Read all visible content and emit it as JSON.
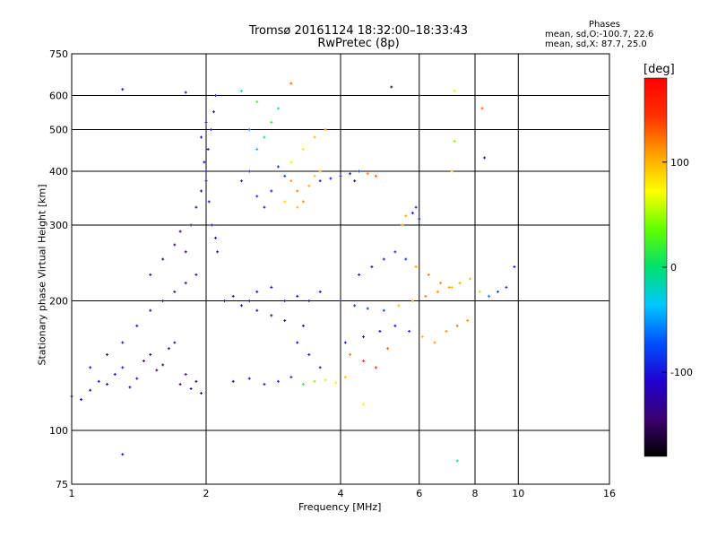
{
  "header": {
    "title_line1": "Tromsø 20161124 18:32:00–18:33:43",
    "title_line2": "RwPretec (8p)"
  },
  "stats": {
    "heading": "Phases",
    "line_o": "mean, sd,O:-100.7, 22.6",
    "line_x": "mean, sd,X:  87.7, 25.0"
  },
  "colorbar": {
    "unit_label": "[deg]",
    "ticks": [
      "100",
      "0",
      "-100"
    ],
    "tick_values": [
      100,
      0,
      -100
    ],
    "range": [
      -180,
      180
    ],
    "colors": [
      "#000000",
      "#3b0070",
      "#2000d0",
      "#0050ff",
      "#00c8ff",
      "#00e070",
      "#60ff00",
      "#ffff00",
      "#ffa000",
      "#ff3000",
      "#ff0000"
    ]
  },
  "chart_data": {
    "type": "scatter",
    "xlabel": "Frequency [MHz]",
    "ylabel": "Stationary phase Virtual Height [km]",
    "x_scale": "log",
    "y_scale": "log",
    "xlim": [
      1,
      16
    ],
    "ylim": [
      75,
      750
    ],
    "x_ticks": [
      1,
      2,
      4,
      6,
      8,
      10,
      16
    ],
    "x_tick_labels": [
      "1",
      "2",
      "4",
      "6",
      "8",
      "10",
      "16"
    ],
    "y_ticks": [
      75,
      100,
      200,
      300,
      400,
      500,
      600,
      750
    ],
    "y_tick_labels": [
      "75",
      "100",
      "200",
      "300",
      "400",
      "500",
      "600",
      "750"
    ],
    "grid": true,
    "series": [
      {
        "points": [
          [
            1.0,
            120,
            -115
          ],
          [
            1.05,
            118,
            -112
          ],
          [
            1.1,
            124,
            -118
          ],
          [
            1.15,
            130,
            -120
          ],
          [
            1.2,
            128,
            -110
          ],
          [
            1.25,
            135,
            -122
          ],
          [
            1.3,
            140,
            -118
          ],
          [
            1.35,
            126,
            -125
          ],
          [
            1.4,
            132,
            -130
          ],
          [
            1.45,
            145,
            -128
          ],
          [
            1.5,
            150,
            -135
          ],
          [
            1.55,
            138,
            -132
          ],
          [
            1.6,
            142,
            -140
          ],
          [
            1.65,
            155,
            -138
          ],
          [
            1.7,
            160,
            -142
          ],
          [
            1.75,
            128,
            -145
          ],
          [
            1.8,
            135,
            -140
          ],
          [
            1.85,
            125,
            -138
          ],
          [
            1.9,
            130,
            -148
          ],
          [
            1.95,
            122,
            -150
          ],
          [
            1.1,
            140,
            -105
          ],
          [
            1.2,
            150,
            -108
          ],
          [
            1.3,
            160,
            -112
          ],
          [
            1.4,
            175,
            -118
          ],
          [
            1.5,
            190,
            -125
          ],
          [
            1.6,
            200,
            -130
          ],
          [
            1.7,
            210,
            -135
          ],
          [
            1.8,
            220,
            -138
          ],
          [
            1.9,
            230,
            -140
          ],
          [
            1.5,
            230,
            -145
          ],
          [
            1.6,
            250,
            -150
          ],
          [
            1.7,
            270,
            -148
          ],
          [
            1.75,
            290,
            -152
          ],
          [
            1.8,
            260,
            -150
          ],
          [
            1.85,
            300,
            -140
          ],
          [
            1.9,
            330,
            -130
          ],
          [
            1.95,
            360,
            -120
          ],
          [
            2.0,
            400,
            -110
          ],
          [
            2.02,
            450,
            -105
          ],
          [
            2.05,
            500,
            -100
          ],
          [
            2.08,
            550,
            -95
          ],
          [
            2.1,
            600,
            -90
          ],
          [
            1.98,
            420,
            -115
          ],
          [
            2.0,
            380,
            -118
          ],
          [
            2.03,
            340,
            -122
          ],
          [
            2.06,
            300,
            -125
          ],
          [
            2.1,
            280,
            -120
          ],
          [
            2.12,
            260,
            -128
          ],
          [
            1.95,
            480,
            -108
          ],
          [
            2.0,
            520,
            -102
          ],
          [
            2.2,
            200,
            -125
          ],
          [
            2.3,
            205,
            -130
          ],
          [
            2.4,
            195,
            -128
          ],
          [
            2.5,
            200,
            -120
          ],
          [
            2.6,
            210,
            -115
          ],
          [
            2.8,
            215,
            -110
          ],
          [
            3.0,
            200,
            -105
          ],
          [
            3.2,
            205,
            -108
          ],
          [
            3.4,
            200,
            -112
          ],
          [
            3.6,
            210,
            -118
          ],
          [
            2.6,
            190,
            -130
          ],
          [
            2.8,
            185,
            -135
          ],
          [
            3.0,
            180,
            -128
          ],
          [
            3.3,
            175,
            -120
          ],
          [
            2.3,
            130,
            -110
          ],
          [
            2.5,
            132,
            -105
          ],
          [
            2.7,
            128,
            -100
          ],
          [
            2.9,
            130,
            -95
          ],
          [
            3.1,
            133,
            -90
          ],
          [
            3.3,
            128,
            20
          ],
          [
            3.5,
            130,
            40
          ],
          [
            3.7,
            131,
            60
          ],
          [
            3.9,
            129,
            80
          ],
          [
            4.1,
            133,
            95
          ],
          [
            3.6,
            140,
            -100
          ],
          [
            3.4,
            150,
            -105
          ],
          [
            3.2,
            160,
            -108
          ],
          [
            2.4,
            380,
            -95
          ],
          [
            2.5,
            400,
            -90
          ],
          [
            2.6,
            350,
            -92
          ],
          [
            2.7,
            330,
            -100
          ],
          [
            2.8,
            360,
            -98
          ],
          [
            2.9,
            410,
            -88
          ],
          [
            3.0,
            390,
            -85
          ],
          [
            2.6,
            450,
            -40
          ],
          [
            2.7,
            480,
            -20
          ],
          [
            2.8,
            520,
            10
          ],
          [
            2.9,
            560,
            -10
          ],
          [
            2.5,
            500,
            -60
          ],
          [
            2.6,
            580,
            30
          ],
          [
            3.1,
            380,
            110
          ],
          [
            3.2,
            360,
            120
          ],
          [
            3.3,
            340,
            115
          ],
          [
            3.4,
            370,
            105
          ],
          [
            3.5,
            390,
            95
          ],
          [
            3.6,
            400,
            100
          ],
          [
            3.1,
            420,
            60
          ],
          [
            3.3,
            450,
            80
          ],
          [
            3.5,
            480,
            100
          ],
          [
            3.7,
            500,
            115
          ],
          [
            3.2,
            330,
            100
          ],
          [
            3.0,
            340,
            90
          ],
          [
            3.6,
            380,
            -100
          ],
          [
            3.8,
            385,
            -105
          ],
          [
            4.0,
            390,
            -95
          ],
          [
            4.2,
            395,
            -90
          ],
          [
            4.4,
            400,
            -85
          ],
          [
            4.6,
            395,
            120
          ],
          [
            4.8,
            390,
            130
          ],
          [
            4.3,
            380,
            -110
          ],
          [
            4.0,
            200,
            -95
          ],
          [
            4.3,
            195,
            -90
          ],
          [
            4.6,
            192,
            -85
          ],
          [
            5.0,
            190,
            -80
          ],
          [
            5.4,
            195,
            100
          ],
          [
            5.8,
            200,
            110
          ],
          [
            6.2,
            205,
            120
          ],
          [
            6.6,
            210,
            115
          ],
          [
            7.0,
            215,
            110
          ],
          [
            7.4,
            220,
            105
          ],
          [
            7.8,
            225,
            100
          ],
          [
            8.2,
            210,
            90
          ],
          [
            8.6,
            205,
            -60
          ],
          [
            9.0,
            210,
            -80
          ],
          [
            9.4,
            215,
            -90
          ],
          [
            4.1,
            160,
            -100
          ],
          [
            4.5,
            165,
            -105
          ],
          [
            4.9,
            170,
            -110
          ],
          [
            5.3,
            175,
            -108
          ],
          [
            5.7,
            170,
            -95
          ],
          [
            6.1,
            165,
            100
          ],
          [
            6.5,
            160,
            110
          ],
          [
            6.9,
            170,
            115
          ],
          [
            7.3,
            175,
            120
          ],
          [
            7.7,
            180,
            112
          ],
          [
            4.2,
            150,
            120
          ],
          [
            4.5,
            145,
            140
          ],
          [
            4.8,
            140,
            150
          ],
          [
            5.1,
            155,
            130
          ],
          [
            4.4,
            230,
            -110
          ],
          [
            4.7,
            240,
            -105
          ],
          [
            5.0,
            250,
            -100
          ],
          [
            5.3,
            260,
            -95
          ],
          [
            5.6,
            250,
            -90
          ],
          [
            5.9,
            240,
            110
          ],
          [
            6.3,
            230,
            120
          ],
          [
            6.7,
            220,
            115
          ],
          [
            7.1,
            215,
            100
          ],
          [
            5.8,
            320,
            -100
          ],
          [
            5.9,
            330,
            -95
          ],
          [
            6.0,
            310,
            -90
          ],
          [
            5.5,
            300,
            110
          ],
          [
            5.6,
            315,
            105
          ],
          [
            1.3,
            620,
            -120
          ],
          [
            1.3,
            88,
            -110
          ],
          [
            1.8,
            610,
            -130
          ],
          [
            2.4,
            615,
            -20
          ],
          [
            3.1,
            640,
            130
          ],
          [
            5.2,
            628,
            -150
          ],
          [
            7.2,
            615,
            60
          ],
          [
            7.3,
            85,
            -10
          ],
          [
            8.3,
            560,
            130
          ],
          [
            8.4,
            430,
            -140
          ],
          [
            9.8,
            240,
            -100
          ],
          [
            4.5,
            115,
            80
          ],
          [
            7.1,
            400,
            90
          ],
          [
            7.2,
            470,
            40
          ]
        ]
      }
    ]
  }
}
